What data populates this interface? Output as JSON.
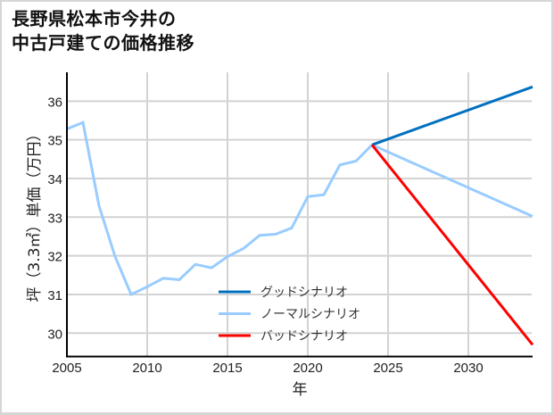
{
  "title": "長野県松本市今井の\n中古戸建ての価格推移",
  "chart_data": {
    "type": "line",
    "title": "長野県松本市今井の中古戸建ての価格推移",
    "xlabel": "年",
    "ylabel": "坪（3.3㎡）単価（万円）",
    "xlim": [
      2005,
      2034
    ],
    "ylim": [
      29.4,
      36.75
    ],
    "grid": true,
    "legend_position": "lower center",
    "x_ticks": [
      2005,
      2010,
      2015,
      2020,
      2025,
      2030
    ],
    "y_ticks": [
      30,
      31,
      32,
      33,
      34,
      35,
      36
    ],
    "series": [
      {
        "name": "ノーマルシナリオ",
        "role": "history",
        "color": "#99ccff",
        "x": [
          2005,
          2006,
          2007,
          2008,
          2009,
          2010,
          2011,
          2012,
          2013,
          2014,
          2015,
          2016,
          2017,
          2018,
          2019,
          2020,
          2021,
          2022,
          2023,
          2024
        ],
        "values": [
          35.28,
          35.45,
          33.29,
          31.98,
          31.0,
          31.2,
          31.42,
          31.38,
          31.78,
          31.69,
          31.98,
          32.19,
          32.53,
          32.56,
          32.72,
          33.53,
          33.58,
          34.35,
          34.45,
          34.87
        ]
      },
      {
        "name": "グッドシナリオ",
        "color": "#0070c0",
        "x": [
          2024,
          2034
        ],
        "values": [
          34.87,
          36.37
        ]
      },
      {
        "name": "ノーマルシナリオ",
        "color": "#99ccff",
        "x": [
          2024,
          2034
        ],
        "values": [
          34.87,
          33.02
        ]
      },
      {
        "name": "バッドシナリオ",
        "color": "#ff0000",
        "x": [
          2024,
          2034
        ],
        "values": [
          34.87,
          29.7
        ]
      }
    ]
  },
  "legend": [
    {
      "label": "グッドシナリオ",
      "color": "#0070c0"
    },
    {
      "label": "ノーマルシナリオ",
      "color": "#99ccff"
    },
    {
      "label": "バッドシナリオ",
      "color": "#ff0000"
    }
  ],
  "axes": {
    "xlabel": "年",
    "ylabel": "坪（3.3㎡）単価（万円）",
    "x_tick_labels": [
      "2005",
      "2010",
      "2015",
      "2020",
      "2025",
      "2030"
    ],
    "y_tick_labels": [
      "30",
      "31",
      "32",
      "33",
      "34",
      "35",
      "36"
    ]
  }
}
